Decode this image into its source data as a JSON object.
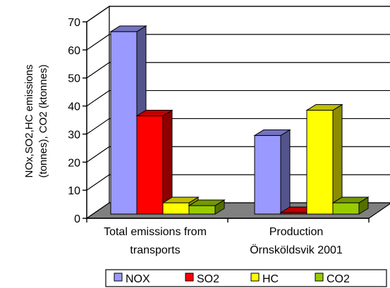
{
  "chart_data": {
    "type": "bar",
    "categories": [
      "Total emissions from transports",
      "Production Örnsköldsvik 2001"
    ],
    "category_lines": [
      [
        "Total emissions from",
        "transports"
      ],
      [
        "Production",
        "Örnsköldsvik 2001"
      ]
    ],
    "series": [
      {
        "name": "NOX",
        "values": [
          65,
          28
        ],
        "color": "#9999ff"
      },
      {
        "name": "SO2",
        "values": [
          35,
          0.5
        ],
        "color": "#ff0000"
      },
      {
        "name": "HC",
        "values": [
          4,
          37
        ],
        "color": "#ffff00"
      },
      {
        "name": "CO2",
        "values": [
          3,
          4
        ],
        "color": "#99cc00"
      }
    ],
    "ylabel_lines": [
      "NOx,SO2,HC emissions",
      "(tonnes), CO2 (ktonnes)"
    ],
    "ylim": [
      0,
      70
    ],
    "yticks": [
      "0",
      "10",
      "20",
      "30",
      "40",
      "50",
      "60",
      "70"
    ],
    "grid": true,
    "legend_position": "bottom",
    "floor_color": "#808080"
  }
}
